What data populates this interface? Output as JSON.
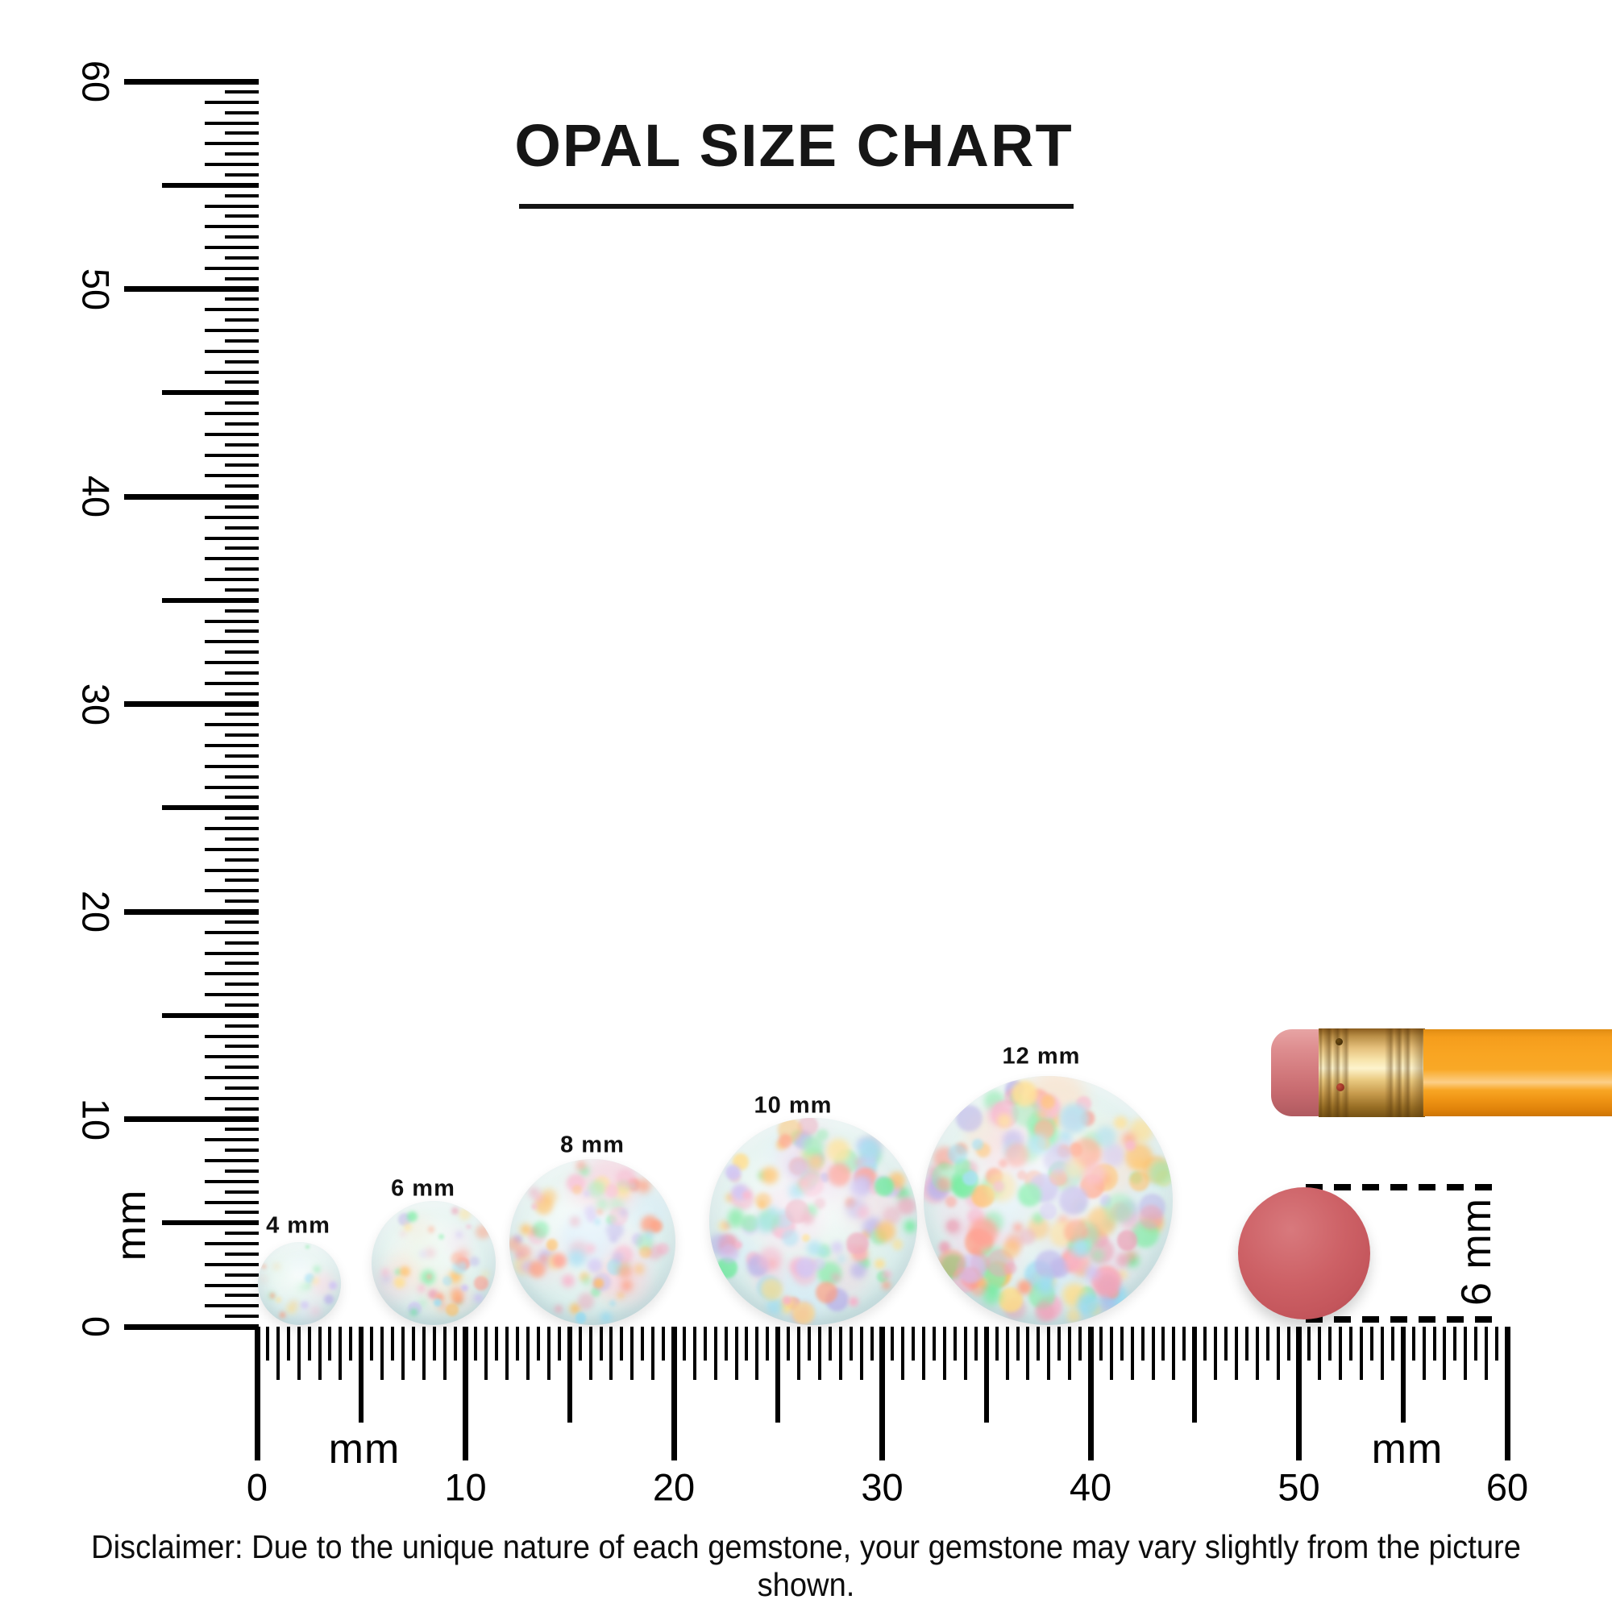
{
  "title": "OPAL SIZE CHART",
  "vertical_ruler": {
    "unit_label": "mm",
    "tick_labels": [
      "0",
      "10",
      "20",
      "30",
      "40",
      "50",
      "60"
    ]
  },
  "horizontal_ruler": {
    "unit_label_left": "mm",
    "unit_label_right": "mm",
    "tick_labels": [
      "0",
      "10",
      "20",
      "30",
      "40",
      "50",
      "60"
    ]
  },
  "opals": [
    {
      "label": "4 mm",
      "size_mm": 4
    },
    {
      "label": "6 mm",
      "size_mm": 6
    },
    {
      "label": "8 mm",
      "size_mm": 8
    },
    {
      "label": "10 mm",
      "size_mm": 10
    },
    {
      "label": "12 mm",
      "size_mm": 12
    }
  ],
  "reference_dot": {
    "label": "6 mm",
    "size_mm": 6,
    "color": "#cd6166"
  },
  "pencil": {
    "eraser_color": "#d37b7e",
    "ferrule_color": "#eaca81",
    "body_color": "#f9a522"
  },
  "opal_palette": [
    "#ffb347",
    "#ff8f6b",
    "#f7a8c4",
    "#b3aae6",
    "#8fd8f0",
    "#7ee8a2",
    "#58e98c",
    "#ffd97a",
    "#e89ab0",
    "#c7b9f2",
    "#ff8a7a"
  ],
  "opal_patch_palette": [
    "#f8c8d8",
    "#ffd8b8",
    "#cfe8f8",
    "#d8f2e0",
    "#f3d2e8"
  ],
  "disclaimer": "Disclaimer: Due to the unique nature of each gemstone, your gemstone may vary slightly from the picture shown."
}
